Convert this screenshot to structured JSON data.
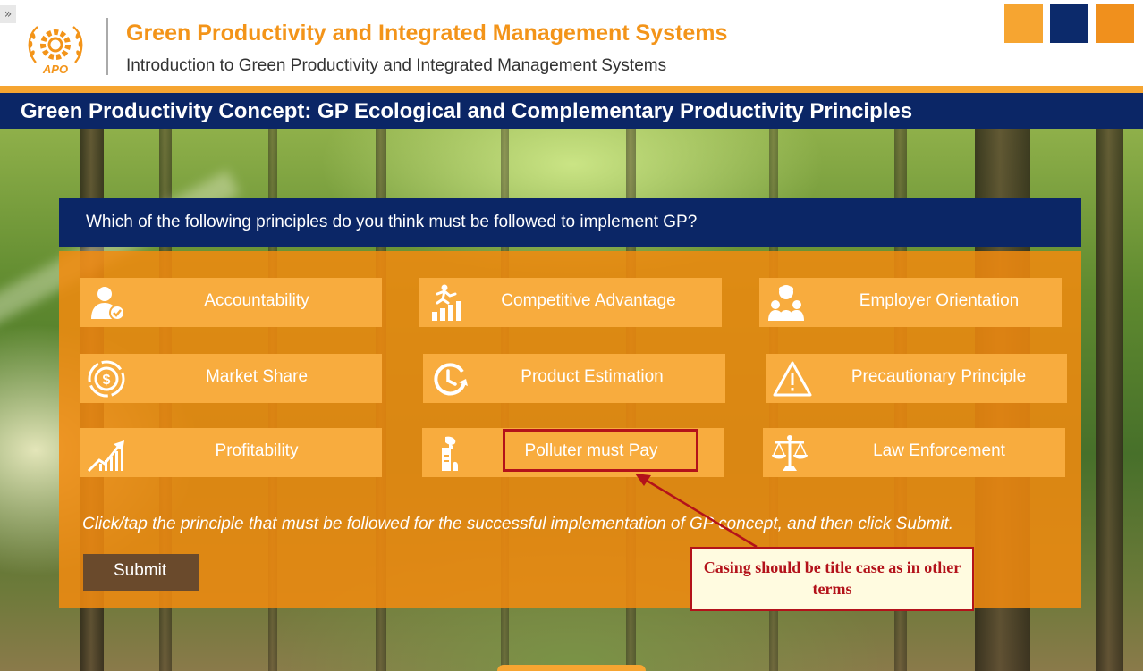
{
  "header": {
    "expand_glyph": "»",
    "logo_text": "APO",
    "course_title": "Green Productivity and Integrated Management Systems",
    "course_subtitle": "Introduction to Green Productivity and Integrated Management Systems",
    "brand_colors": [
      "#f6a531",
      "#0c2a6b",
      "#f0901d"
    ]
  },
  "page": {
    "title": "Green Productivity Concept: GP Ecological and Complementary Productivity Principles"
  },
  "question": {
    "text": "Which of the following principles do you think must be followed to implement GP?"
  },
  "options": [
    {
      "label": "Accountability",
      "icon": "person-check-icon"
    },
    {
      "label": "Competitive Advantage",
      "icon": "runner-bar-chart-icon"
    },
    {
      "label": "Employer Orientation",
      "icon": "people-group-icon"
    },
    {
      "label": "Market Share",
      "icon": "dollar-target-icon"
    },
    {
      "label": "Product Estimation",
      "icon": "clock-arrow-icon"
    },
    {
      "label": "Precautionary Principle",
      "icon": "warning-triangle-icon"
    },
    {
      "label": "Profitability",
      "icon": "growth-chart-icon"
    },
    {
      "label": "Polluter must Pay",
      "icon": "factory-smoke-icon"
    },
    {
      "label": "Law Enforcement",
      "icon": "scales-icon"
    }
  ],
  "instruction": "Click/tap the principle that must be followed for the successful implementation of GP concept, and then click Submit.",
  "submit_label": "Submit",
  "annotation": {
    "callout_text": "Casing should be title case as in other terms",
    "color": "#b3121a"
  }
}
